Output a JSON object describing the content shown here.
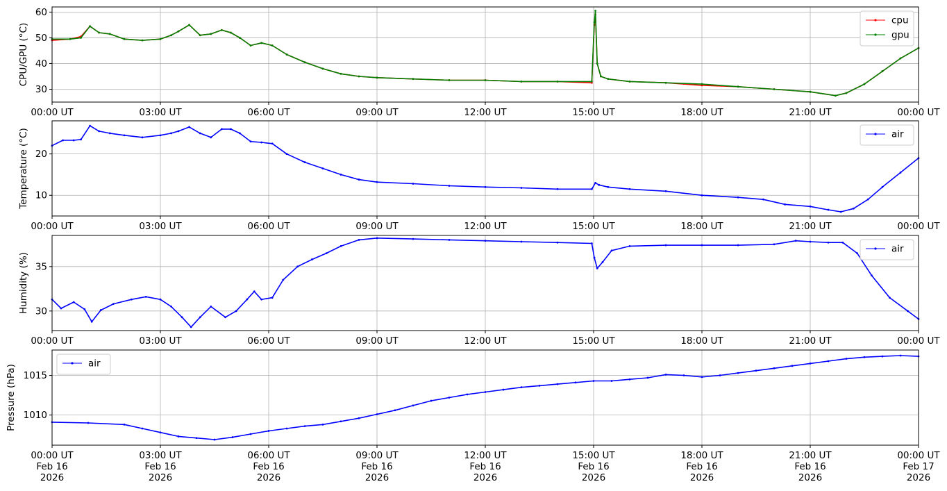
{
  "chart_data": [
    {
      "type": "line",
      "ylabel": "CPU/GPU (°C)",
      "ylim": [
        25,
        62
      ],
      "yticks": [
        30,
        40,
        50,
        60
      ],
      "grid": true,
      "legend_position": "top-right",
      "x_tick_labels": [
        "00:00 UT",
        "03:00 UT",
        "06:00 UT",
        "09:00 UT",
        "12:00 UT",
        "15:00 UT",
        "18:00 UT",
        "21:00 UT",
        "00:00 UT"
      ],
      "x_range_hours": [
        0,
        24
      ],
      "series": [
        {
          "name": "cpu",
          "color": "#ff0000",
          "marker": "dot",
          "x": [
            0,
            0.5,
            0.8,
            1.05,
            1.3,
            1.6,
            2.0,
            2.5,
            3.0,
            3.3,
            3.5,
            3.8,
            4.1,
            4.4,
            4.7,
            4.95,
            5.2,
            5.5,
            5.8,
            6.1,
            6.5,
            7.0,
            7.5,
            8.0,
            8.5,
            9.0,
            10.0,
            11.0,
            12.0,
            13.0,
            14.0,
            14.95,
            15.02,
            15.05,
            15.1,
            15.2,
            15.4,
            16.0,
            17.0,
            18.0,
            19.0,
            20.0,
            21.0,
            21.7,
            22.0,
            22.5,
            23.0,
            23.5,
            24.0
          ],
          "values": [
            49,
            49.5,
            50.5,
            54.5,
            52,
            51.5,
            49.5,
            49,
            49.5,
            51,
            52.5,
            55,
            51,
            51.5,
            53,
            52,
            50,
            47,
            48,
            47,
            43.5,
            40.5,
            38,
            36,
            35,
            34.5,
            34,
            33.5,
            33.5,
            33,
            33,
            32.5,
            55,
            59,
            40,
            35,
            34,
            33,
            32.5,
            31.5,
            31,
            30,
            29,
            27.5,
            28.5,
            32,
            37,
            42,
            46
          ]
        },
        {
          "name": "gpu",
          "color": "#008000",
          "marker": "dot",
          "x": [
            0,
            0.5,
            0.8,
            1.05,
            1.3,
            1.6,
            2.0,
            2.5,
            3.0,
            3.3,
            3.5,
            3.8,
            4.1,
            4.4,
            4.7,
            4.95,
            5.2,
            5.5,
            5.8,
            6.1,
            6.5,
            7.0,
            7.5,
            8.0,
            8.5,
            9.0,
            10.0,
            11.0,
            12.0,
            13.0,
            14.0,
            14.95,
            15.02,
            15.05,
            15.1,
            15.2,
            15.4,
            16.0,
            17.0,
            18.0,
            19.0,
            20.0,
            21.0,
            21.7,
            22.0,
            22.5,
            23.0,
            23.5,
            24.0
          ],
          "values": [
            49.5,
            49.5,
            50,
            54.5,
            52,
            51.5,
            49.5,
            49,
            49.5,
            51,
            52.5,
            55,
            51,
            51.5,
            53,
            52,
            50,
            47,
            48,
            47,
            43.5,
            40.5,
            38,
            36,
            35,
            34.5,
            34,
            33.5,
            33.5,
            33,
            33,
            33,
            56,
            60.5,
            40,
            35,
            34,
            33,
            32.5,
            32,
            31,
            30,
            29,
            27.5,
            28.5,
            32,
            37,
            42,
            46
          ]
        }
      ]
    },
    {
      "type": "line",
      "ylabel": "Temperature (°C)",
      "ylim": [
        5,
        28
      ],
      "yticks": [
        10,
        20
      ],
      "grid": true,
      "legend_position": "top-right",
      "x_tick_labels": [
        "00:00 UT",
        "03:00 UT",
        "06:00 UT",
        "09:00 UT",
        "12:00 UT",
        "15:00 UT",
        "18:00 UT",
        "21:00 UT",
        "00:00 UT"
      ],
      "x_range_hours": [
        0,
        24
      ],
      "series": [
        {
          "name": "air",
          "color": "#0000ff",
          "marker": "dot",
          "x": [
            0,
            0.3,
            0.6,
            0.8,
            1.05,
            1.3,
            1.6,
            2.0,
            2.5,
            3.0,
            3.3,
            3.5,
            3.8,
            4.1,
            4.4,
            4.7,
            4.95,
            5.2,
            5.5,
            5.8,
            6.1,
            6.5,
            7.0,
            7.5,
            8.0,
            8.5,
            9.0,
            10.0,
            11.0,
            12.0,
            13.0,
            14.0,
            14.95,
            15.05,
            15.15,
            15.4,
            16.0,
            17.0,
            18.0,
            19.0,
            19.7,
            20.3,
            21.0,
            21.5,
            21.85,
            22.2,
            22.6,
            23.0,
            23.5,
            24.0
          ],
          "values": [
            22,
            23.3,
            23.3,
            23.5,
            26.8,
            25.5,
            25,
            24.5,
            24,
            24.5,
            25,
            25.5,
            26.5,
            25,
            24,
            26,
            26,
            25,
            23,
            22.8,
            22.5,
            20,
            18,
            16.5,
            15,
            13.8,
            13.2,
            12.8,
            12.3,
            12,
            11.8,
            11.5,
            11.5,
            13,
            12.5,
            12,
            11.5,
            11,
            10,
            9.5,
            9,
            7.8,
            7.3,
            6.5,
            6,
            6.8,
            9,
            12,
            15.5,
            19
          ]
        }
      ]
    },
    {
      "type": "line",
      "ylabel": "Humidity (%)",
      "ylim": [
        27.8,
        38.5
      ],
      "yticks": [
        30,
        35
      ],
      "grid": true,
      "legend_position": "top-right",
      "x_tick_labels": [
        "00:00 UT",
        "03:00 UT",
        "06:00 UT",
        "09:00 UT",
        "12:00 UT",
        "15:00 UT",
        "18:00 UT",
        "21:00 UT",
        "00:00 UT"
      ],
      "x_range_hours": [
        0,
        24
      ],
      "series": [
        {
          "name": "air",
          "color": "#0000ff",
          "marker": "dot",
          "x": [
            0,
            0.25,
            0.6,
            0.9,
            1.1,
            1.35,
            1.7,
            2.2,
            2.6,
            3.0,
            3.3,
            3.6,
            3.85,
            4.1,
            4.4,
            4.8,
            5.1,
            5.4,
            5.6,
            5.8,
            6.1,
            6.4,
            6.8,
            7.2,
            7.6,
            8.0,
            8.5,
            9.0,
            10.0,
            11.0,
            12.0,
            13.0,
            14.0,
            14.95,
            15.02,
            15.1,
            15.25,
            15.5,
            16.0,
            17.0,
            18.0,
            19.0,
            20.0,
            20.6,
            21.0,
            21.5,
            21.9,
            22.3,
            22.7,
            23.2,
            23.7,
            24.0
          ],
          "values": [
            31.3,
            30.3,
            31,
            30.2,
            28.8,
            30.1,
            30.8,
            31.3,
            31.6,
            31.3,
            30.5,
            29.3,
            28.2,
            29.3,
            30.5,
            29.3,
            30,
            31.3,
            32.2,
            31.3,
            31.5,
            33.5,
            35,
            35.8,
            36.5,
            37.3,
            38,
            38.2,
            38.1,
            38,
            37.9,
            37.8,
            37.7,
            37.6,
            36,
            34.8,
            35.5,
            36.8,
            37.3,
            37.4,
            37.4,
            37.4,
            37.5,
            37.9,
            37.8,
            37.7,
            37.7,
            36.5,
            34,
            31.5,
            30,
            29.1
          ]
        }
      ]
    },
    {
      "type": "line",
      "ylabel": "Pressure (hPa)",
      "ylim": [
        1006.2,
        1018.2
      ],
      "yticks": [
        1010,
        1015
      ],
      "grid": true,
      "legend_position": "top-left",
      "x_tick_labels": [
        "00:00 UT\nFeb 16\n2026",
        "03:00 UT\nFeb 16\n2026",
        "06:00 UT\nFeb 16\n2026",
        "09:00 UT\nFeb 16\n2026",
        "12:00 UT\nFeb 16\n2026",
        "15:00 UT\nFeb 16\n2026",
        "18:00 UT\nFeb 16\n2026",
        "21:00 UT\nFeb 16\n2026",
        "00:00 UT\nFeb 17\n2026"
      ],
      "x_range_hours": [
        0,
        24
      ],
      "series": [
        {
          "name": "air",
          "color": "#0000ff",
          "marker": "dot",
          "x": [
            0,
            1.0,
            2.0,
            2.5,
            3.0,
            3.5,
            4.0,
            4.5,
            5.0,
            5.5,
            6.0,
            6.5,
            7.0,
            7.5,
            8.0,
            8.5,
            9.0,
            9.5,
            10.0,
            10.5,
            11.0,
            11.5,
            12.0,
            12.5,
            13.0,
            13.5,
            14.0,
            14.5,
            15.0,
            15.5,
            16.0,
            16.5,
            17.0,
            17.5,
            18.0,
            18.5,
            19.0,
            19.5,
            20.0,
            20.5,
            21.0,
            21.5,
            22.0,
            22.5,
            23.0,
            23.5,
            24.0
          ],
          "values": [
            1009.1,
            1009,
            1008.8,
            1008.3,
            1007.8,
            1007.3,
            1007.1,
            1006.9,
            1007.2,
            1007.6,
            1008,
            1008.3,
            1008.6,
            1008.8,
            1009.2,
            1009.6,
            1010.1,
            1010.6,
            1011.2,
            1011.8,
            1012.2,
            1012.6,
            1012.9,
            1013.2,
            1013.5,
            1013.7,
            1013.9,
            1014.1,
            1014.3,
            1014.3,
            1014.5,
            1014.7,
            1015.1,
            1015,
            1014.8,
            1015,
            1015.3,
            1015.6,
            1015.9,
            1016.2,
            1016.5,
            1016.8,
            1017.1,
            1017.3,
            1017.4,
            1017.5,
            1017.4
          ]
        }
      ]
    }
  ]
}
